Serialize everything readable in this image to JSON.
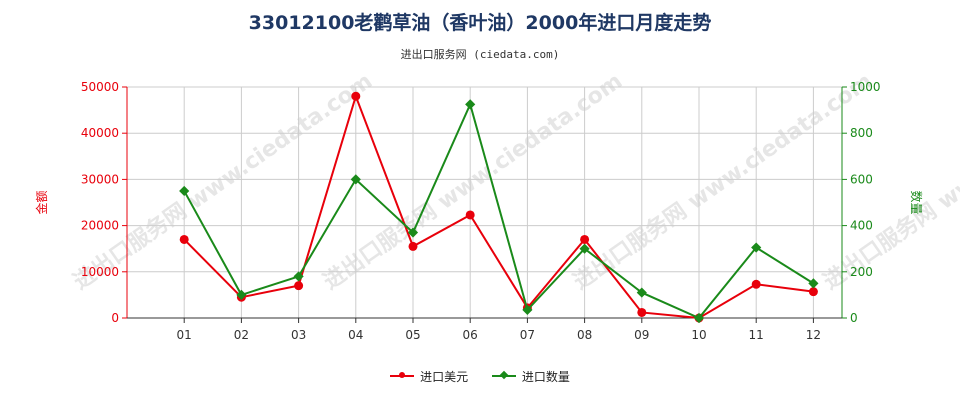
{
  "colors": {
    "value": "#e8000b",
    "quantity": "#1a8a1a",
    "grid": "#cccccc",
    "axis": "#333333"
  },
  "chart_data": {
    "type": "line",
    "title": "33012100老鹳草油（香叶油）2000年进口月度走势",
    "subtitle": "进出口服务网 (ciedata.com)",
    "watermark": "进出口服务网 www.ciedata.com",
    "categories": [
      "01",
      "02",
      "03",
      "04",
      "05",
      "06",
      "07",
      "08",
      "09",
      "10",
      "11",
      "12"
    ],
    "y_left": {
      "label": "金额",
      "range": [
        0,
        50000
      ],
      "ticks": [
        "0",
        "10000",
        "20000",
        "30000",
        "40000",
        "50000"
      ]
    },
    "y_right": {
      "label": "数量",
      "range": [
        0,
        1000
      ],
      "ticks": [
        "0",
        "200",
        "400",
        "600",
        "800",
        "1000"
      ]
    },
    "grid": true,
    "legend_position": "bottom",
    "series": [
      {
        "name": "进口美元",
        "axis": "left",
        "marker": "circle",
        "values": [
          17000,
          4500,
          7000,
          48000,
          15500,
          22300,
          2200,
          17000,
          1200,
          0,
          7300,
          5700
        ]
      },
      {
        "name": "进口数量",
        "axis": "right",
        "marker": "diamond",
        "values": [
          550,
          100,
          180,
          600,
          370,
          925,
          35,
          300,
          110,
          0,
          305,
          150
        ]
      }
    ]
  }
}
